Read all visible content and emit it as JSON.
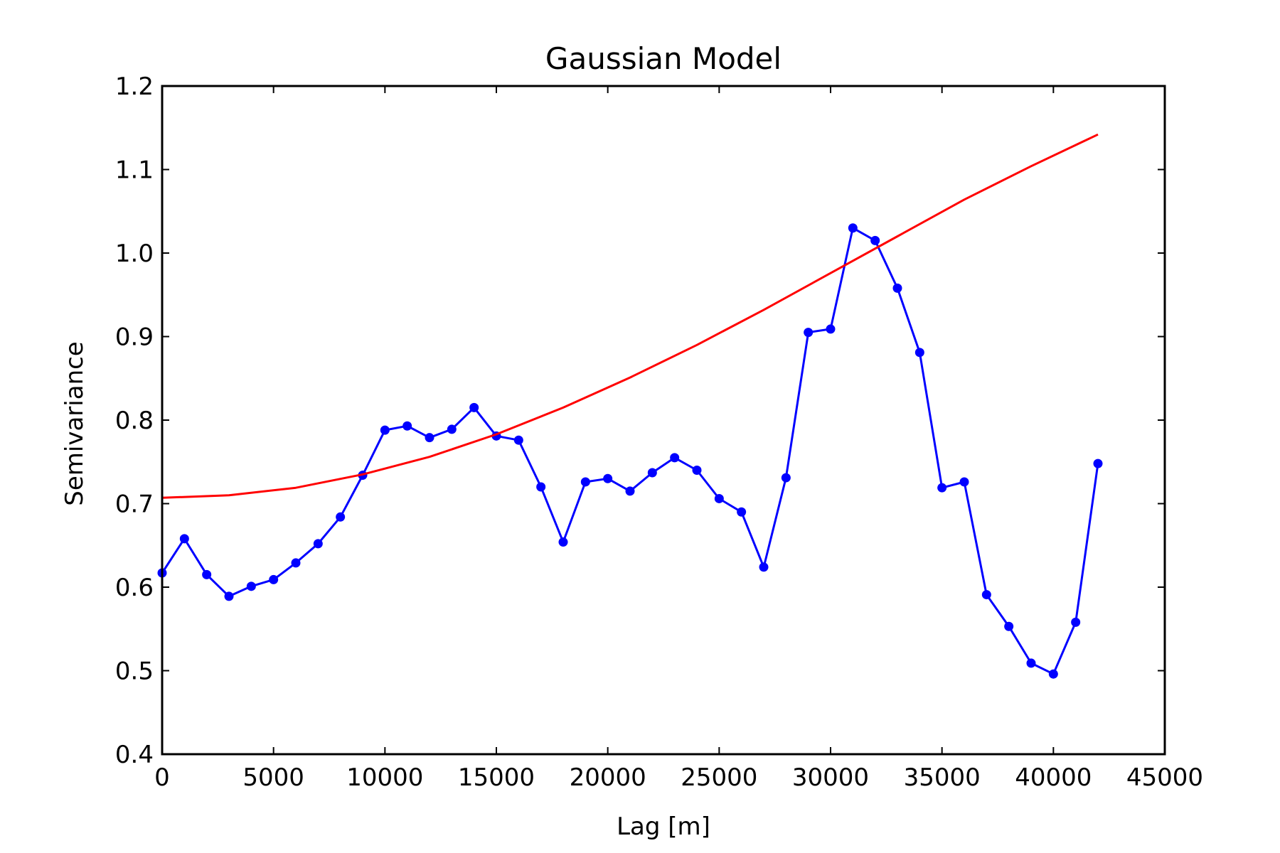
{
  "chart_data": {
    "type": "line",
    "title": "Gaussian Model",
    "xlabel": "Lag [m]",
    "ylabel": "Semivariance",
    "xlim": [
      0,
      45000
    ],
    "ylim": [
      0.4,
      1.2
    ],
    "x_ticks": [
      "0",
      "5000",
      "10000",
      "15000",
      "20000",
      "25000",
      "30000",
      "35000",
      "40000",
      "45000"
    ],
    "y_ticks": [
      "0.4",
      "0.5",
      "0.6",
      "0.7",
      "0.8",
      "0.9",
      "1.0",
      "1.1",
      "1.2"
    ],
    "x_tick_values": [
      0,
      5000,
      10000,
      15000,
      20000,
      25000,
      30000,
      35000,
      40000,
      45000
    ],
    "y_tick_values": [
      0.4,
      0.5,
      0.6,
      0.7,
      0.8,
      0.9,
      1.0,
      1.1,
      1.2
    ],
    "grid": false,
    "series": [
      {
        "style": "line-markers",
        "color": "#0000ff",
        "x": [
          0,
          1000,
          2000,
          3000,
          4000,
          5000,
          6000,
          7000,
          8000,
          9000,
          10000,
          11000,
          12000,
          13000,
          14000,
          15000,
          16000,
          17000,
          18000,
          19000,
          20000,
          21000,
          22000,
          23000,
          24000,
          25000,
          26000,
          27000,
          28000,
          29000,
          30000,
          31000,
          32000,
          33000,
          34000,
          35000,
          36000,
          37000,
          38000,
          39000,
          40000,
          41000,
          42000
        ],
        "y": [
          0.617,
          0.658,
          0.615,
          0.589,
          0.601,
          0.609,
          0.629,
          0.652,
          0.684,
          0.734,
          0.788,
          0.793,
          0.779,
          0.789,
          0.815,
          0.781,
          0.776,
          0.72,
          0.654,
          0.726,
          0.73,
          0.715,
          0.737,
          0.755,
          0.74,
          0.706,
          0.69,
          0.624,
          0.731,
          0.905,
          0.909,
          1.03,
          1.015,
          0.958,
          0.881,
          0.719,
          0.726,
          0.591,
          0.553,
          0.509,
          0.496,
          0.558,
          0.748
        ]
      },
      {
        "style": "line",
        "color": "#ff0000",
        "x": [
          0,
          3000,
          6000,
          9000,
          12000,
          15000,
          18000,
          21000,
          24000,
          27000,
          30000,
          33000,
          36000,
          39000,
          42000
        ],
        "y": [
          0.707,
          0.71,
          0.719,
          0.735,
          0.756,
          0.783,
          0.815,
          0.851,
          0.89,
          0.932,
          0.976,
          1.02,
          1.064,
          1.104,
          1.142
        ]
      }
    ]
  }
}
